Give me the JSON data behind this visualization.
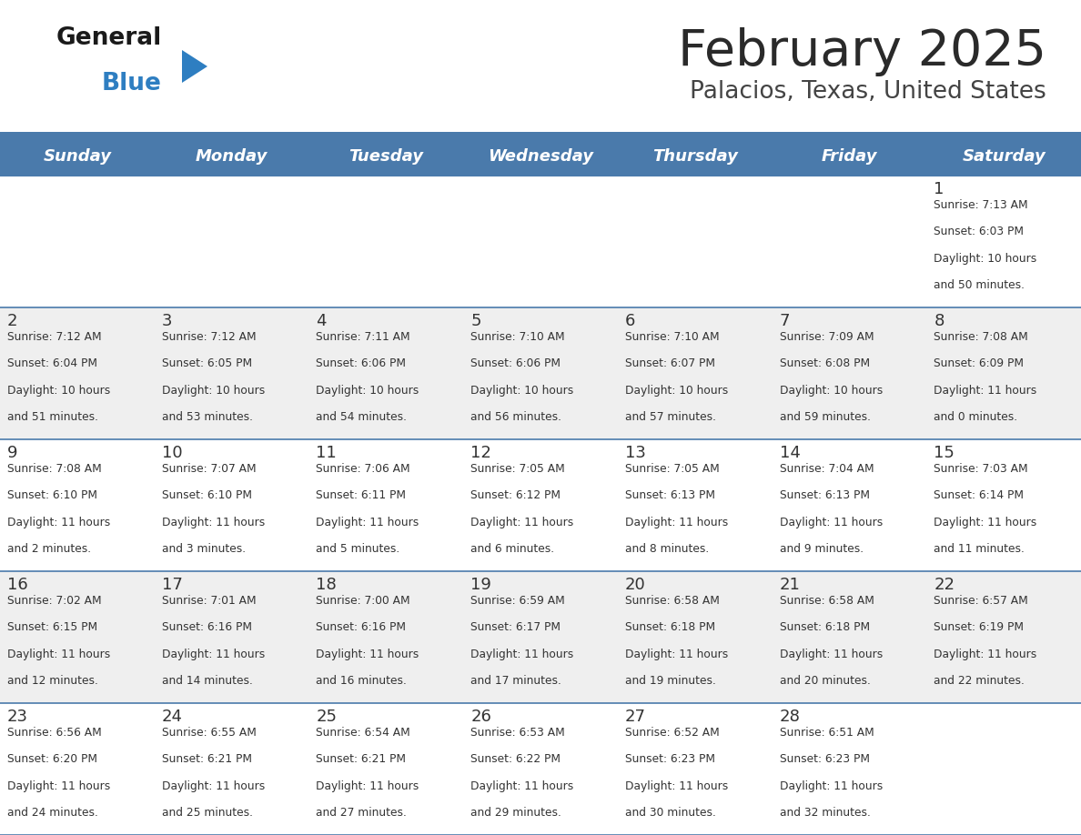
{
  "title": "February 2025",
  "subtitle": "Palacios, Texas, United States",
  "header_bg": "#4A7AAB",
  "header_text_color": "#FFFFFF",
  "cell_bg_even": "#FFFFFF",
  "cell_bg_odd": "#EFEFEF",
  "border_color": "#4A7AAB",
  "day_headers": [
    "Sunday",
    "Monday",
    "Tuesday",
    "Wednesday",
    "Thursday",
    "Friday",
    "Saturday"
  ],
  "title_color": "#2a2a2a",
  "subtitle_color": "#444444",
  "logo_general_color": "#1a1a1a",
  "logo_blue_color": "#2E7EC1",
  "text_color": "#333333",
  "days": [
    {
      "day": 1,
      "col": 6,
      "row": 0,
      "sunrise": "7:13 AM",
      "sunset": "6:03 PM",
      "dl1": "Daylight: 10 hours",
      "dl2": "and 50 minutes."
    },
    {
      "day": 2,
      "col": 0,
      "row": 1,
      "sunrise": "7:12 AM",
      "sunset": "6:04 PM",
      "dl1": "Daylight: 10 hours",
      "dl2": "and 51 minutes."
    },
    {
      "day": 3,
      "col": 1,
      "row": 1,
      "sunrise": "7:12 AM",
      "sunset": "6:05 PM",
      "dl1": "Daylight: 10 hours",
      "dl2": "and 53 minutes."
    },
    {
      "day": 4,
      "col": 2,
      "row": 1,
      "sunrise": "7:11 AM",
      "sunset": "6:06 PM",
      "dl1": "Daylight: 10 hours",
      "dl2": "and 54 minutes."
    },
    {
      "day": 5,
      "col": 3,
      "row": 1,
      "sunrise": "7:10 AM",
      "sunset": "6:06 PM",
      "dl1": "Daylight: 10 hours",
      "dl2": "and 56 minutes."
    },
    {
      "day": 6,
      "col": 4,
      "row": 1,
      "sunrise": "7:10 AM",
      "sunset": "6:07 PM",
      "dl1": "Daylight: 10 hours",
      "dl2": "and 57 minutes."
    },
    {
      "day": 7,
      "col": 5,
      "row": 1,
      "sunrise": "7:09 AM",
      "sunset": "6:08 PM",
      "dl1": "Daylight: 10 hours",
      "dl2": "and 59 minutes."
    },
    {
      "day": 8,
      "col": 6,
      "row": 1,
      "sunrise": "7:08 AM",
      "sunset": "6:09 PM",
      "dl1": "Daylight: 11 hours",
      "dl2": "and 0 minutes."
    },
    {
      "day": 9,
      "col": 0,
      "row": 2,
      "sunrise": "7:08 AM",
      "sunset": "6:10 PM",
      "dl1": "Daylight: 11 hours",
      "dl2": "and 2 minutes."
    },
    {
      "day": 10,
      "col": 1,
      "row": 2,
      "sunrise": "7:07 AM",
      "sunset": "6:10 PM",
      "dl1": "Daylight: 11 hours",
      "dl2": "and 3 minutes."
    },
    {
      "day": 11,
      "col": 2,
      "row": 2,
      "sunrise": "7:06 AM",
      "sunset": "6:11 PM",
      "dl1": "Daylight: 11 hours",
      "dl2": "and 5 minutes."
    },
    {
      "day": 12,
      "col": 3,
      "row": 2,
      "sunrise": "7:05 AM",
      "sunset": "6:12 PM",
      "dl1": "Daylight: 11 hours",
      "dl2": "and 6 minutes."
    },
    {
      "day": 13,
      "col": 4,
      "row": 2,
      "sunrise": "7:05 AM",
      "sunset": "6:13 PM",
      "dl1": "Daylight: 11 hours",
      "dl2": "and 8 minutes."
    },
    {
      "day": 14,
      "col": 5,
      "row": 2,
      "sunrise": "7:04 AM",
      "sunset": "6:13 PM",
      "dl1": "Daylight: 11 hours",
      "dl2": "and 9 minutes."
    },
    {
      "day": 15,
      "col": 6,
      "row": 2,
      "sunrise": "7:03 AM",
      "sunset": "6:14 PM",
      "dl1": "Daylight: 11 hours",
      "dl2": "and 11 minutes."
    },
    {
      "day": 16,
      "col": 0,
      "row": 3,
      "sunrise": "7:02 AM",
      "sunset": "6:15 PM",
      "dl1": "Daylight: 11 hours",
      "dl2": "and 12 minutes."
    },
    {
      "day": 17,
      "col": 1,
      "row": 3,
      "sunrise": "7:01 AM",
      "sunset": "6:16 PM",
      "dl1": "Daylight: 11 hours",
      "dl2": "and 14 minutes."
    },
    {
      "day": 18,
      "col": 2,
      "row": 3,
      "sunrise": "7:00 AM",
      "sunset": "6:16 PM",
      "dl1": "Daylight: 11 hours",
      "dl2": "and 16 minutes."
    },
    {
      "day": 19,
      "col": 3,
      "row": 3,
      "sunrise": "6:59 AM",
      "sunset": "6:17 PM",
      "dl1": "Daylight: 11 hours",
      "dl2": "and 17 minutes."
    },
    {
      "day": 20,
      "col": 4,
      "row": 3,
      "sunrise": "6:58 AM",
      "sunset": "6:18 PM",
      "dl1": "Daylight: 11 hours",
      "dl2": "and 19 minutes."
    },
    {
      "day": 21,
      "col": 5,
      "row": 3,
      "sunrise": "6:58 AM",
      "sunset": "6:18 PM",
      "dl1": "Daylight: 11 hours",
      "dl2": "and 20 minutes."
    },
    {
      "day": 22,
      "col": 6,
      "row": 3,
      "sunrise": "6:57 AM",
      "sunset": "6:19 PM",
      "dl1": "Daylight: 11 hours",
      "dl2": "and 22 minutes."
    },
    {
      "day": 23,
      "col": 0,
      "row": 4,
      "sunrise": "6:56 AM",
      "sunset": "6:20 PM",
      "dl1": "Daylight: 11 hours",
      "dl2": "and 24 minutes."
    },
    {
      "day": 24,
      "col": 1,
      "row": 4,
      "sunrise": "6:55 AM",
      "sunset": "6:21 PM",
      "dl1": "Daylight: 11 hours",
      "dl2": "and 25 minutes."
    },
    {
      "day": 25,
      "col": 2,
      "row": 4,
      "sunrise": "6:54 AM",
      "sunset": "6:21 PM",
      "dl1": "Daylight: 11 hours",
      "dl2": "and 27 minutes."
    },
    {
      "day": 26,
      "col": 3,
      "row": 4,
      "sunrise": "6:53 AM",
      "sunset": "6:22 PM",
      "dl1": "Daylight: 11 hours",
      "dl2": "and 29 minutes."
    },
    {
      "day": 27,
      "col": 4,
      "row": 4,
      "sunrise": "6:52 AM",
      "sunset": "6:23 PM",
      "dl1": "Daylight: 11 hours",
      "dl2": "and 30 minutes."
    },
    {
      "day": 28,
      "col": 5,
      "row": 4,
      "sunrise": "6:51 AM",
      "sunset": "6:23 PM",
      "dl1": "Daylight: 11 hours",
      "dl2": "and 32 minutes."
    }
  ]
}
